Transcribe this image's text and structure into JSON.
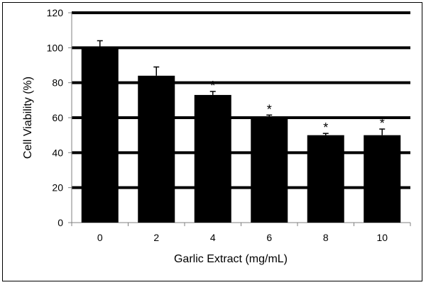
{
  "chart_data": {
    "type": "bar",
    "categories": [
      "0",
      "2",
      "4",
      "6",
      "8",
      "10"
    ],
    "values": [
      100,
      84,
      73,
      60,
      50,
      50
    ],
    "errors": [
      4,
      5,
      2,
      1.5,
      1,
      3.5
    ],
    "significant": [
      false,
      false,
      true,
      true,
      true,
      true
    ],
    "significance_marker": "*",
    "title": "",
    "xlabel": "Garlic Extract (mg/mL)",
    "ylabel": "Cell Viability (%)",
    "ylim": [
      0,
      120
    ],
    "yticks": [
      "0",
      "20",
      "40",
      "60",
      "80",
      "100",
      "120"
    ],
    "grid": true,
    "colors": {
      "bar": "#000000",
      "grid": "#000000",
      "axis": "#808080"
    }
  }
}
